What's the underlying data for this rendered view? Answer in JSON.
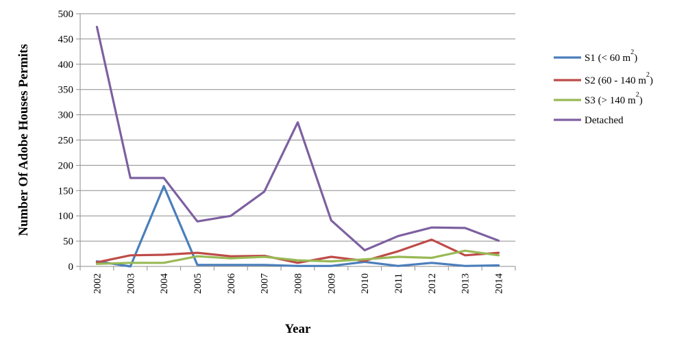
{
  "chart_data": {
    "type": "line",
    "title": "",
    "xlabel": "Year",
    "ylabel": "Number Of Adobe Houses Permits",
    "ylim": [
      0,
      500
    ],
    "yticks": [
      0,
      50,
      100,
      150,
      200,
      250,
      300,
      350,
      400,
      450,
      500
    ],
    "grid": true,
    "legend_position": "right",
    "categories": [
      "2002",
      "2003",
      "2004",
      "2005",
      "2006",
      "2007",
      "2008",
      "2009",
      "2010",
      "2011",
      "2012",
      "2013",
      "2014"
    ],
    "series": [
      {
        "name": "S1 (< 60 m",
        "name_sup": "2",
        "name_end": ")",
        "color": "#4a7ebb",
        "values": [
          10,
          0,
          159,
          3,
          3,
          3,
          1,
          1,
          9,
          1,
          7,
          1,
          2
        ]
      },
      {
        "name": "S2 (60 - 140 m",
        "name_sup": "2",
        "name_end": ")",
        "color": "#be4b48",
        "values": [
          8,
          22,
          23,
          27,
          20,
          21,
          7,
          19,
          11,
          30,
          53,
          22,
          27
        ]
      },
      {
        "name": "S3 (> 140 m",
        "name_sup": "2",
        "name_end": ")",
        "color": "#98b954",
        "values": [
          5,
          7,
          7,
          20,
          16,
          19,
          12,
          10,
          14,
          19,
          17,
          31,
          22
        ]
      },
      {
        "name": "Detached",
        "name_sup": "",
        "name_end": "",
        "color": "#7d60a0",
        "values": [
          474,
          175,
          175,
          89,
          100,
          148,
          285,
          91,
          32,
          60,
          77,
          76,
          51
        ]
      }
    ]
  }
}
